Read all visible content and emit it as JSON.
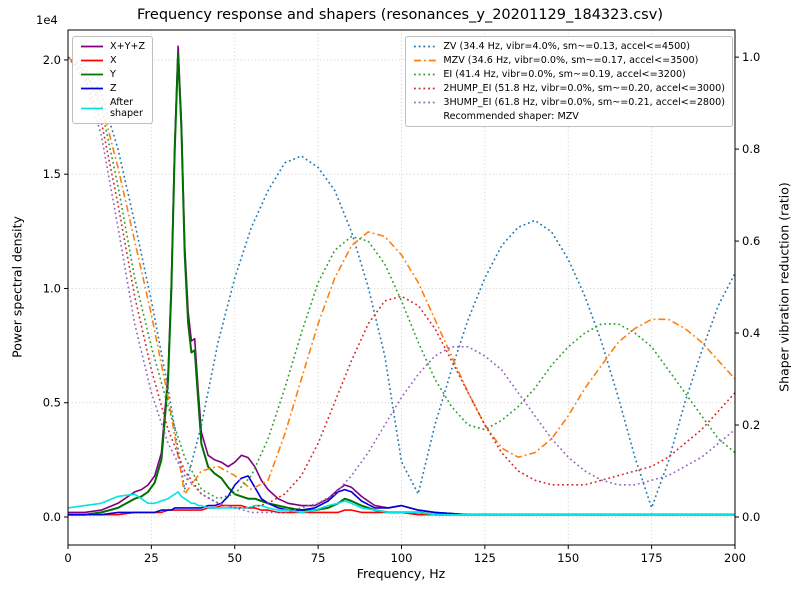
{
  "chart_data": {
    "type": "line",
    "title": "Frequency response and shapers (resonances_y_20201129_184323.csv)",
    "grid": true,
    "recommended_text": "Recommended shaper: MZV",
    "recommended_shaper": "MZV",
    "x_axis": {
      "label": "Frequency, Hz",
      "min": 0,
      "max": 200,
      "ticks": [
        0,
        25,
        50,
        75,
        100,
        125,
        150,
        175,
        200
      ],
      "tick_labels": [
        "0",
        "25",
        "50",
        "75",
        "100",
        "125",
        "150",
        "175",
        "200"
      ]
    },
    "left_axis": {
      "label": "Power spectral density",
      "offset_label": "1e4",
      "unit_scale": 10000,
      "min": -0.1225,
      "max": 2.131,
      "ticks": [
        0.0,
        0.5,
        1.0,
        1.5,
        2.0
      ],
      "tick_labels": [
        "0.0",
        "0.5",
        "1.0",
        "1.5",
        "2.0"
      ]
    },
    "right_axis": {
      "label": "Shaper vibration reduction (ratio)",
      "min": -0.0609,
      "max": 1.059,
      "ticks": [
        0.0,
        0.2,
        0.4,
        0.6,
        0.8,
        1.0
      ],
      "tick_labels": [
        "0.0",
        "0.2",
        "0.4",
        "0.6",
        "0.8",
        "1.0"
      ]
    },
    "psd_series": {
      "axis": "left",
      "x": [
        0,
        5,
        10,
        15,
        20,
        22,
        24,
        26,
        28,
        30,
        31,
        32,
        33,
        34,
        35,
        36,
        37,
        38,
        39,
        40,
        42,
        44,
        46,
        48,
        50,
        52,
        54,
        56,
        58,
        60,
        63,
        66,
        70,
        74,
        78,
        81,
        83,
        85,
        88,
        92,
        96,
        100,
        105,
        110,
        120,
        140,
        160,
        180,
        200
      ],
      "series": [
        {
          "id": "xyz",
          "label": "X+Y+Z",
          "color": "#800080",
          "style": "solid",
          "values": [
            0.02,
            0.02,
            0.03,
            0.06,
            0.11,
            0.12,
            0.14,
            0.18,
            0.28,
            0.63,
            1.03,
            1.63,
            2.06,
            1.73,
            1.19,
            0.9,
            0.77,
            0.78,
            0.56,
            0.37,
            0.27,
            0.25,
            0.24,
            0.22,
            0.24,
            0.27,
            0.26,
            0.22,
            0.16,
            0.12,
            0.08,
            0.06,
            0.05,
            0.05,
            0.08,
            0.12,
            0.14,
            0.13,
            0.09,
            0.05,
            0.04,
            0.05,
            0.03,
            0.02,
            0.01,
            0.01,
            0.01,
            0.01,
            0.01
          ]
        },
        {
          "id": "x",
          "label": "X",
          "color": "#ff0000",
          "style": "solid",
          "values": [
            0.01,
            0.01,
            0.01,
            0.01,
            0.02,
            0.02,
            0.02,
            0.02,
            0.02,
            0.03,
            0.03,
            0.03,
            0.03,
            0.03,
            0.03,
            0.03,
            0.03,
            0.03,
            0.03,
            0.03,
            0.04,
            0.04,
            0.05,
            0.05,
            0.05,
            0.05,
            0.04,
            0.04,
            0.03,
            0.03,
            0.02,
            0.02,
            0.02,
            0.02,
            0.02,
            0.02,
            0.03,
            0.03,
            0.02,
            0.02,
            0.02,
            0.02,
            0.01,
            0.01,
            0.01,
            0.01,
            0.01,
            0.01,
            0.01
          ]
        },
        {
          "id": "y",
          "label": "Y",
          "color": "#007000",
          "style": "solid",
          "values": [
            0.01,
            0.01,
            0.02,
            0.04,
            0.08,
            0.09,
            0.11,
            0.15,
            0.25,
            0.6,
            1.0,
            1.6,
            2.03,
            1.7,
            1.15,
            0.85,
            0.72,
            0.73,
            0.52,
            0.32,
            0.22,
            0.19,
            0.17,
            0.13,
            0.1,
            0.09,
            0.08,
            0.08,
            0.07,
            0.06,
            0.05,
            0.04,
            0.03,
            0.03,
            0.04,
            0.06,
            0.08,
            0.07,
            0.05,
            0.03,
            0.02,
            0.02,
            0.02,
            0.01,
            0.01,
            0.01,
            0.01,
            0.01,
            0.01
          ]
        },
        {
          "id": "z",
          "label": "Z",
          "color": "#0000dd",
          "style": "solid",
          "values": [
            0.01,
            0.01,
            0.01,
            0.02,
            0.02,
            0.02,
            0.02,
            0.02,
            0.03,
            0.03,
            0.03,
            0.04,
            0.04,
            0.04,
            0.04,
            0.04,
            0.04,
            0.04,
            0.04,
            0.04,
            0.05,
            0.05,
            0.06,
            0.09,
            0.14,
            0.17,
            0.18,
            0.13,
            0.08,
            0.06,
            0.04,
            0.03,
            0.03,
            0.04,
            0.07,
            0.11,
            0.12,
            0.11,
            0.07,
            0.04,
            0.04,
            0.05,
            0.03,
            0.02,
            0.01,
            0.01,
            0.01,
            0.01,
            0.01
          ]
        },
        {
          "id": "after_shaper",
          "label": "After\nshaper",
          "color": "#00e5e5",
          "style": "solid",
          "values": [
            0.04,
            0.05,
            0.06,
            0.09,
            0.1,
            0.08,
            0.06,
            0.06,
            0.07,
            0.08,
            0.09,
            0.1,
            0.11,
            0.09,
            0.08,
            0.07,
            0.06,
            0.06,
            0.05,
            0.05,
            0.04,
            0.04,
            0.04,
            0.04,
            0.04,
            0.04,
            0.04,
            0.05,
            0.05,
            0.04,
            0.03,
            0.03,
            0.02,
            0.03,
            0.05,
            0.06,
            0.07,
            0.06,
            0.04,
            0.03,
            0.02,
            0.02,
            0.02,
            0.01,
            0.01,
            0.01,
            0.01,
            0.01,
            0.01
          ]
        }
      ]
    },
    "shaper_series": {
      "axis": "right",
      "x": [
        0,
        5,
        10,
        15,
        20,
        25,
        30,
        35,
        40,
        45,
        50,
        55,
        60,
        65,
        70,
        75,
        80,
        85,
        90,
        95,
        100,
        105,
        110,
        115,
        120,
        125,
        130,
        135,
        140,
        145,
        150,
        155,
        160,
        165,
        170,
        175,
        180,
        185,
        190,
        195,
        200
      ],
      "series": [
        {
          "id": "zv",
          "name": "ZV",
          "label": "ZV (34.4 Hz, vibr=4.0%, sm~=0.13, accel<=4500)",
          "color": "#1f77b4",
          "style": "dotted",
          "values": [
            1.0,
            0.98,
            0.92,
            0.8,
            0.64,
            0.47,
            0.28,
            0.06,
            0.2,
            0.38,
            0.52,
            0.63,
            0.71,
            0.77,
            0.785,
            0.76,
            0.71,
            0.62,
            0.5,
            0.35,
            0.12,
            0.05,
            0.2,
            0.32,
            0.43,
            0.52,
            0.59,
            0.63,
            0.645,
            0.62,
            0.56,
            0.48,
            0.38,
            0.26,
            0.13,
            0.02,
            0.12,
            0.25,
            0.36,
            0.46,
            0.53
          ]
        },
        {
          "id": "mzv",
          "name": "MZV",
          "label": "MZV (34.6 Hz, vibr=0.0%, sm~=0.17, accel<=3500)",
          "color": "#ff7f0e",
          "style": "dashdot",
          "values": [
            1.0,
            0.97,
            0.9,
            0.76,
            0.6,
            0.44,
            0.26,
            0.05,
            0.1,
            0.11,
            0.09,
            0.06,
            0.08,
            0.18,
            0.3,
            0.42,
            0.52,
            0.59,
            0.62,
            0.61,
            0.57,
            0.51,
            0.43,
            0.35,
            0.27,
            0.2,
            0.15,
            0.13,
            0.14,
            0.17,
            0.22,
            0.28,
            0.33,
            0.38,
            0.41,
            0.43,
            0.43,
            0.41,
            0.38,
            0.34,
            0.3
          ]
        },
        {
          "id": "ei",
          "name": "EI",
          "label": "EI (41.4 Hz, vibr=0.0%, sm~=0.19, accel<=3200)",
          "color": "#2ca02c",
          "style": "dotted",
          "values": [
            1.0,
            0.97,
            0.89,
            0.72,
            0.52,
            0.37,
            0.24,
            0.13,
            0.06,
            0.04,
            0.05,
            0.09,
            0.17,
            0.28,
            0.4,
            0.51,
            0.58,
            0.61,
            0.6,
            0.55,
            0.47,
            0.38,
            0.3,
            0.24,
            0.2,
            0.19,
            0.21,
            0.24,
            0.28,
            0.33,
            0.37,
            0.4,
            0.42,
            0.42,
            0.4,
            0.37,
            0.32,
            0.27,
            0.22,
            0.17,
            0.14
          ]
        },
        {
          "id": "2hump_ei",
          "name": "2HUMP_EI",
          "label": "2HUMP_EI (51.8 Hz, vibr=0.0%, sm~=0.20, accel<=3000)",
          "color": "#d62728",
          "style": "dotted",
          "values": [
            1.0,
            0.96,
            0.86,
            0.68,
            0.48,
            0.32,
            0.19,
            0.1,
            0.05,
            0.03,
            0.02,
            0.02,
            0.03,
            0.05,
            0.09,
            0.16,
            0.25,
            0.34,
            0.42,
            0.47,
            0.48,
            0.46,
            0.41,
            0.34,
            0.27,
            0.2,
            0.14,
            0.1,
            0.08,
            0.07,
            0.07,
            0.07,
            0.08,
            0.09,
            0.1,
            0.11,
            0.13,
            0.16,
            0.19,
            0.23,
            0.27
          ]
        },
        {
          "id": "3hump_ei",
          "name": "3HUMP_EI",
          "label": "3HUMP_EI (61.8 Hz, vibr=0.0%, sm~=0.21, accel<=2800)",
          "color": "#9467bd",
          "style": "dotted",
          "values": [
            1.0,
            0.95,
            0.83,
            0.63,
            0.42,
            0.27,
            0.16,
            0.09,
            0.05,
            0.03,
            0.02,
            0.01,
            0.01,
            0.01,
            0.02,
            0.03,
            0.05,
            0.09,
            0.14,
            0.2,
            0.26,
            0.31,
            0.35,
            0.37,
            0.37,
            0.35,
            0.32,
            0.27,
            0.22,
            0.17,
            0.13,
            0.1,
            0.08,
            0.07,
            0.07,
            0.08,
            0.09,
            0.11,
            0.13,
            0.16,
            0.19
          ]
        }
      ]
    }
  }
}
